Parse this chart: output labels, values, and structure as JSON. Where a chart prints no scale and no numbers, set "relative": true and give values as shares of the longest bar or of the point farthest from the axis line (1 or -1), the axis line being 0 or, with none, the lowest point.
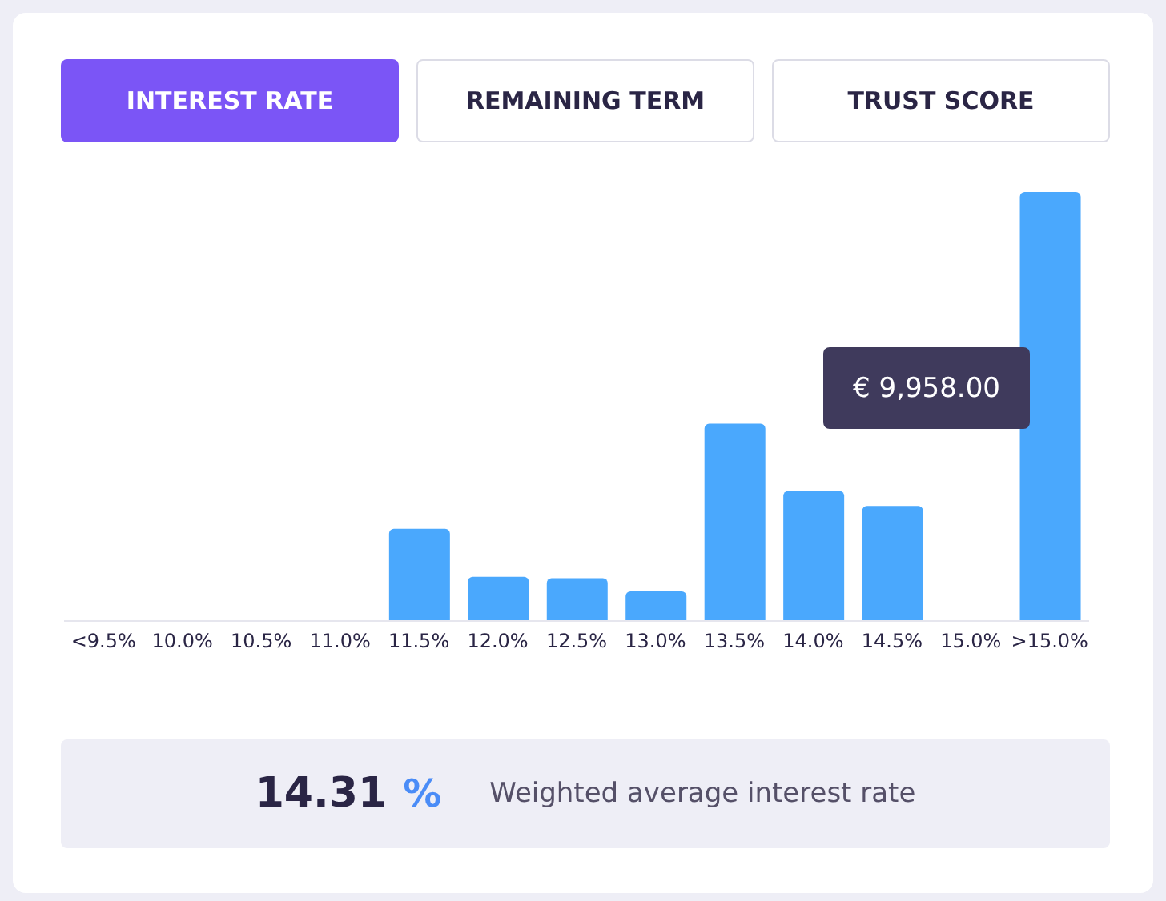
{
  "chart_data": {
    "type": "bar",
    "relative": true,
    "categories": [
      "<9.5%",
      "10.0%",
      "10.5%",
      "11.0%",
      "11.5%",
      "12.0%",
      "12.5%",
      "13.0%",
      "13.5%",
      "14.0%",
      "14.5%",
      "15.0%",
      ">15.0%"
    ],
    "values": [
      0,
      0,
      0,
      0,
      0.215,
      0.103,
      0.1,
      0.069,
      0.46,
      0.303,
      0.268,
      0,
      1
    ],
    "color": "#4aa8fd",
    "grid": false,
    "legend": false,
    "annotations": [
      "INTEREST RATE",
      "REMAINING TERM",
      "TRUST SCORE",
      "€ 9,958.00",
      "14.31",
      "%",
      "Weighted average interest rate"
    ]
  }
}
